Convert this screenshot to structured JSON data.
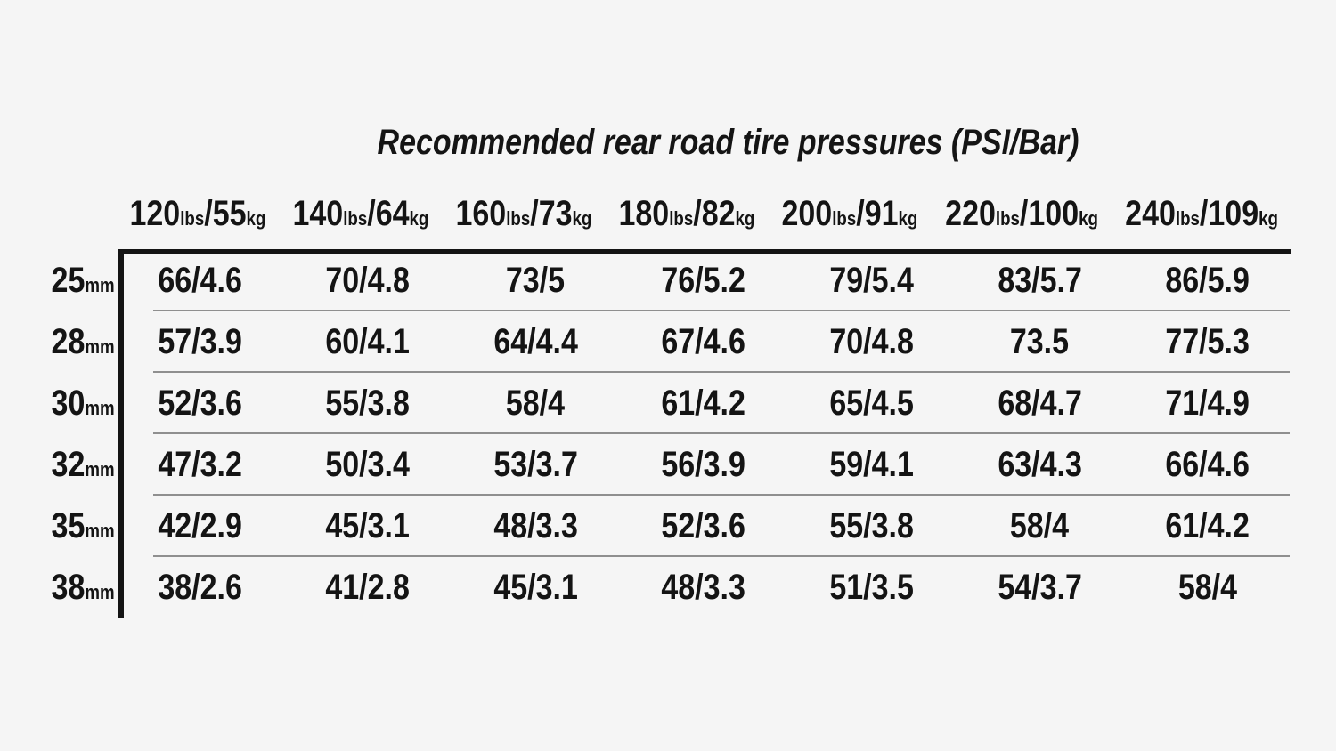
{
  "title": "Recommended rear road tire pressures (PSI/Bar)",
  "table": {
    "columns": [
      {
        "lbs": "120",
        "lbs_unit": "lbs",
        "sep": "/",
        "kg": "55",
        "kg_unit": "kg"
      },
      {
        "lbs": "140",
        "lbs_unit": "lbs",
        "sep": "/",
        "kg": "64",
        "kg_unit": "kg"
      },
      {
        "lbs": "160",
        "lbs_unit": "lbs",
        "sep": "/",
        "kg": "73",
        "kg_unit": "kg"
      },
      {
        "lbs": "180",
        "lbs_unit": "lbs",
        "sep": "/",
        "kg": "82",
        "kg_unit": "kg"
      },
      {
        "lbs": "200",
        "lbs_unit": "lbs",
        "sep": "/",
        "kg": "91",
        "kg_unit": "kg"
      },
      {
        "lbs": "220",
        "lbs_unit": "lbs",
        "sep": "/",
        "kg": "100",
        "kg_unit": "kg"
      },
      {
        "lbs": "240",
        "lbs_unit": "lbs",
        "sep": "/",
        "kg": "109",
        "kg_unit": "kg"
      }
    ],
    "rows": [
      {
        "size": "25",
        "unit": "mm",
        "values": [
          "66/4.6",
          "70/4.8",
          "73/5",
          "76/5.2",
          "79/5.4",
          "83/5.7",
          "86/5.9"
        ]
      },
      {
        "size": "28",
        "unit": "mm",
        "values": [
          "57/3.9",
          "60/4.1",
          "64/4.4",
          "67/4.6",
          "70/4.8",
          "73.5",
          "77/5.3"
        ]
      },
      {
        "size": "30",
        "unit": "mm",
        "values": [
          "52/3.6",
          "55/3.8",
          "58/4",
          "61/4.2",
          "65/4.5",
          "68/4.7",
          "71/4.9"
        ]
      },
      {
        "size": "32",
        "unit": "mm",
        "values": [
          "47/3.2",
          "50/3.4",
          "53/3.7",
          "56/3.9",
          "59/4.1",
          "63/4.3",
          "66/4.6"
        ]
      },
      {
        "size": "35",
        "unit": "mm",
        "values": [
          "42/2.9",
          "45/3.1",
          "48/3.3",
          "52/3.6",
          "55/3.8",
          "58/4",
          "61/4.2"
        ]
      },
      {
        "size": "38",
        "unit": "mm",
        "values": [
          "38/2.6",
          "41/2.8",
          "45/3.1",
          "48/3.3",
          "51/3.5",
          "54/3.7",
          "58/4"
        ]
      }
    ]
  },
  "colors": {
    "background": "#f5f5f5",
    "text": "#141414",
    "rule_thick": "#141414",
    "rule_thin": "#8f8f8f"
  },
  "chart_data": {
    "type": "table",
    "title": "Recommended rear road tire pressures (PSI/Bar)",
    "column_headers": [
      "120lbs/55kg",
      "140lbs/64kg",
      "160lbs/73kg",
      "180lbs/82kg",
      "200lbs/91kg",
      "220lbs/100kg",
      "240lbs/109kg"
    ],
    "row_headers": [
      "25mm",
      "28mm",
      "30mm",
      "32mm",
      "35mm",
      "38mm"
    ],
    "cells": [
      [
        "66/4.6",
        "70/4.8",
        "73/5",
        "76/5.2",
        "79/5.4",
        "83/5.7",
        "86/5.9"
      ],
      [
        "57/3.9",
        "60/4.1",
        "64/4.4",
        "67/4.6",
        "70/4.8",
        "73.5",
        "77/5.3"
      ],
      [
        "52/3.6",
        "55/3.8",
        "58/4",
        "61/4.2",
        "65/4.5",
        "68/4.7",
        "71/4.9"
      ],
      [
        "47/3.2",
        "50/3.4",
        "53/3.7",
        "56/3.9",
        "59/4.1",
        "63/4.3",
        "66/4.6"
      ],
      [
        "42/2.9",
        "45/3.1",
        "48/3.3",
        "52/3.6",
        "55/3.8",
        "58/4",
        "61/4.2"
      ],
      [
        "38/2.6",
        "41/2.8",
        "45/3.1",
        "48/3.3",
        "51/3.5",
        "54/3.7",
        "58/4"
      ]
    ],
    "value_format": "PSI/Bar",
    "legend_position": "none",
    "grid": "horizontal-separators"
  }
}
